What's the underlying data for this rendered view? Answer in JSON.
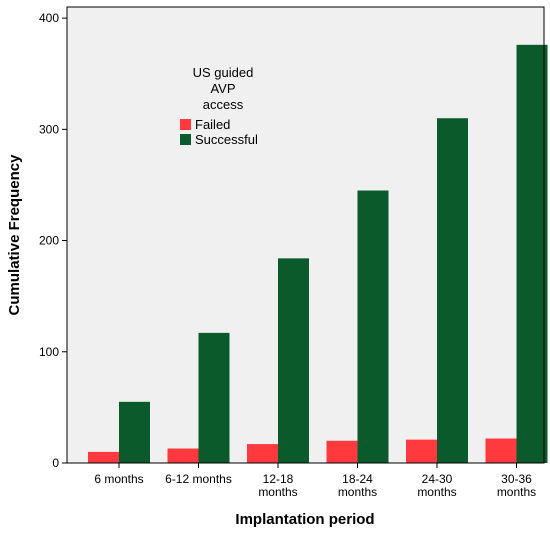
{
  "chart_data": {
    "type": "bar",
    "title": "",
    "xlabel": "Implantation period",
    "ylabel": "Cumulative Frequency",
    "categories": [
      [
        "6 months"
      ],
      [
        "6-12 months"
      ],
      [
        "12-18",
        "months"
      ],
      [
        "18-24",
        "months"
      ],
      [
        "24-30",
        "months"
      ],
      [
        "30-36",
        "months"
      ]
    ],
    "ylim": [
      0,
      410
    ],
    "yticks": [
      0,
      100,
      200,
      300,
      400
    ],
    "grid": false,
    "legend": {
      "title_lines": [
        "US guided",
        "AVP",
        "access"
      ],
      "placement": "top-left"
    },
    "series": [
      {
        "name": "Failed",
        "color": "#ff3a3f",
        "values": [
          10,
          13,
          17,
          20,
          21,
          22
        ]
      },
      {
        "name": "Successful",
        "color": "#0b5a2b",
        "values": [
          55,
          117,
          184,
          245,
          310,
          376
        ]
      }
    ],
    "plot_background": "#f0f0f0"
  }
}
